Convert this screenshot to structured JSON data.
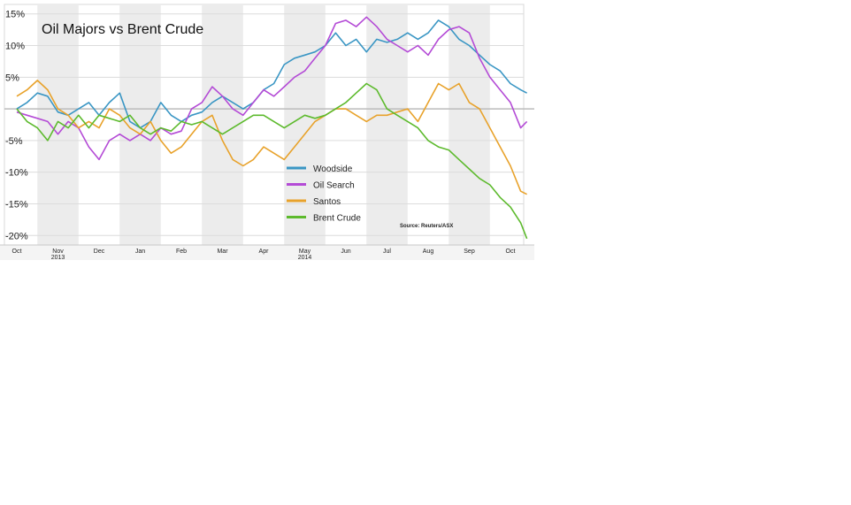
{
  "chart_data": {
    "type": "line",
    "title": "Oil Majors vs Brent Crude",
    "source": "Source: Reuters/ASX",
    "ylim": [
      -21.5,
      16.5
    ],
    "y_ticks": [
      15,
      10,
      5,
      -5,
      -10,
      -15,
      -20
    ],
    "y_tick_labels": [
      "15%",
      "10%",
      "5%",
      "-5%",
      "-10%",
      "-15%",
      "-20%"
    ],
    "zero_line": 0,
    "x_months": [
      "Oct",
      "Nov",
      "Dec",
      "Jan",
      "Feb",
      "Mar",
      "Apr",
      "May",
      "Jun",
      "Jul",
      "Aug",
      "Sep",
      "Oct"
    ],
    "x_years": [
      {
        "label": "2013",
        "month_index": 1
      },
      {
        "label": "2014",
        "month_index": 7
      }
    ],
    "shaded_months": [
      1,
      3,
      5,
      7,
      9,
      11
    ],
    "grid": true,
    "legend_position": "center",
    "series": [
      {
        "name": "Woodside",
        "color": "#3a96c4",
        "points": [
          [
            0,
            0
          ],
          [
            0.25,
            1
          ],
          [
            0.5,
            2.5
          ],
          [
            0.75,
            2
          ],
          [
            1,
            -0.5
          ],
          [
            1.25,
            -1
          ],
          [
            1.5,
            0
          ],
          [
            1.75,
            1
          ],
          [
            2,
            -1
          ],
          [
            2.25,
            1
          ],
          [
            2.5,
            2.5
          ],
          [
            2.75,
            -2
          ],
          [
            3,
            -3
          ],
          [
            3.25,
            -2
          ],
          [
            3.5,
            1
          ],
          [
            3.75,
            -1
          ],
          [
            4,
            -2
          ],
          [
            4.25,
            -1
          ],
          [
            4.5,
            -0.5
          ],
          [
            4.75,
            1
          ],
          [
            5,
            2
          ],
          [
            5.25,
            1
          ],
          [
            5.5,
            0
          ],
          [
            5.75,
            1
          ],
          [
            6,
            3
          ],
          [
            6.25,
            4
          ],
          [
            6.5,
            7
          ],
          [
            6.75,
            8
          ],
          [
            7,
            8.5
          ],
          [
            7.25,
            9
          ],
          [
            7.5,
            10
          ],
          [
            7.75,
            12
          ],
          [
            8,
            10
          ],
          [
            8.25,
            11
          ],
          [
            8.5,
            9
          ],
          [
            8.75,
            11
          ],
          [
            9,
            10.5
          ],
          [
            9.25,
            11
          ],
          [
            9.5,
            12
          ],
          [
            9.75,
            11
          ],
          [
            10,
            12
          ],
          [
            10.25,
            14
          ],
          [
            10.5,
            13
          ],
          [
            10.75,
            11
          ],
          [
            11,
            10
          ],
          [
            11.25,
            8.5
          ],
          [
            11.5,
            7
          ],
          [
            11.75,
            6
          ],
          [
            12,
            4
          ],
          [
            12.25,
            3
          ],
          [
            12.4,
            2.5
          ]
        ]
      },
      {
        "name": "Oil Search",
        "color": "#b44bd6",
        "points": [
          [
            0,
            -0.5
          ],
          [
            0.25,
            -1
          ],
          [
            0.5,
            -1.5
          ],
          [
            0.75,
            -2
          ],
          [
            1,
            -4
          ],
          [
            1.25,
            -2
          ],
          [
            1.5,
            -3
          ],
          [
            1.75,
            -6
          ],
          [
            2,
            -8
          ],
          [
            2.25,
            -5
          ],
          [
            2.5,
            -4
          ],
          [
            2.75,
            -5
          ],
          [
            3,
            -4
          ],
          [
            3.25,
            -5
          ],
          [
            3.5,
            -3
          ],
          [
            3.75,
            -4
          ],
          [
            4,
            -3.5
          ],
          [
            4.25,
            0
          ],
          [
            4.5,
            1
          ],
          [
            4.75,
            3.5
          ],
          [
            5,
            2
          ],
          [
            5.25,
            0
          ],
          [
            5.5,
            -1
          ],
          [
            5.75,
            1
          ],
          [
            6,
            3
          ],
          [
            6.25,
            2
          ],
          [
            6.5,
            3.5
          ],
          [
            6.75,
            5
          ],
          [
            7,
            6
          ],
          [
            7.25,
            8
          ],
          [
            7.5,
            10
          ],
          [
            7.75,
            13.5
          ],
          [
            8,
            14
          ],
          [
            8.25,
            13
          ],
          [
            8.5,
            14.5
          ],
          [
            8.75,
            13
          ],
          [
            9,
            11
          ],
          [
            9.25,
            10
          ],
          [
            9.5,
            9
          ],
          [
            9.75,
            10
          ],
          [
            10,
            8.5
          ],
          [
            10.25,
            11
          ],
          [
            10.5,
            12.5
          ],
          [
            10.75,
            13
          ],
          [
            11,
            12
          ],
          [
            11.25,
            8
          ],
          [
            11.5,
            5
          ],
          [
            11.75,
            3
          ],
          [
            12,
            1
          ],
          [
            12.25,
            -3
          ],
          [
            12.4,
            -2
          ]
        ]
      },
      {
        "name": "Santos",
        "color": "#e8a22b",
        "points": [
          [
            0,
            2
          ],
          [
            0.25,
            3
          ],
          [
            0.5,
            4.5
          ],
          [
            0.75,
            3
          ],
          [
            1,
            0
          ],
          [
            1.25,
            -1
          ],
          [
            1.5,
            -3
          ],
          [
            1.75,
            -2
          ],
          [
            2,
            -3
          ],
          [
            2.25,
            0
          ],
          [
            2.5,
            -1
          ],
          [
            2.75,
            -3
          ],
          [
            3,
            -4
          ],
          [
            3.25,
            -2
          ],
          [
            3.5,
            -5
          ],
          [
            3.75,
            -7
          ],
          [
            4,
            -6
          ],
          [
            4.25,
            -4
          ],
          [
            4.5,
            -2
          ],
          [
            4.75,
            -1
          ],
          [
            5,
            -5
          ],
          [
            5.25,
            -8
          ],
          [
            5.5,
            -9
          ],
          [
            5.75,
            -8
          ],
          [
            6,
            -6
          ],
          [
            6.25,
            -7
          ],
          [
            6.5,
            -8
          ],
          [
            6.75,
            -6
          ],
          [
            7,
            -4
          ],
          [
            7.25,
            -2
          ],
          [
            7.5,
            -1
          ],
          [
            7.75,
            0
          ],
          [
            8,
            0
          ],
          [
            8.25,
            -1
          ],
          [
            8.5,
            -2
          ],
          [
            8.75,
            -1
          ],
          [
            9,
            -1
          ],
          [
            9.25,
            -0.5
          ],
          [
            9.5,
            0
          ],
          [
            9.75,
            -2
          ],
          [
            10,
            1
          ],
          [
            10.25,
            4
          ],
          [
            10.5,
            3
          ],
          [
            10.75,
            4
          ],
          [
            11,
            1
          ],
          [
            11.25,
            0
          ],
          [
            11.5,
            -3
          ],
          [
            11.75,
            -6
          ],
          [
            12,
            -9
          ],
          [
            12.25,
            -13
          ],
          [
            12.4,
            -13.5
          ]
        ]
      },
      {
        "name": "Brent Crude",
        "color": "#5dba2d",
        "points": [
          [
            0,
            0
          ],
          [
            0.25,
            -2
          ],
          [
            0.5,
            -3
          ],
          [
            0.75,
            -5
          ],
          [
            1,
            -2
          ],
          [
            1.25,
            -3
          ],
          [
            1.5,
            -1
          ],
          [
            1.75,
            -3
          ],
          [
            2,
            -1
          ],
          [
            2.25,
            -1.5
          ],
          [
            2.5,
            -2
          ],
          [
            2.75,
            -1
          ],
          [
            3,
            -3
          ],
          [
            3.25,
            -4
          ],
          [
            3.5,
            -3
          ],
          [
            3.75,
            -3.5
          ],
          [
            4,
            -2
          ],
          [
            4.25,
            -2.5
          ],
          [
            4.5,
            -2
          ],
          [
            4.75,
            -3
          ],
          [
            5,
            -4
          ],
          [
            5.25,
            -3
          ],
          [
            5.5,
            -2
          ],
          [
            5.75,
            -1
          ],
          [
            6,
            -1
          ],
          [
            6.25,
            -2
          ],
          [
            6.5,
            -3
          ],
          [
            6.75,
            -2
          ],
          [
            7,
            -1
          ],
          [
            7.25,
            -1.5
          ],
          [
            7.5,
            -1
          ],
          [
            7.75,
            0
          ],
          [
            8,
            1
          ],
          [
            8.25,
            2.5
          ],
          [
            8.5,
            4
          ],
          [
            8.75,
            3
          ],
          [
            9,
            0
          ],
          [
            9.25,
            -1
          ],
          [
            9.5,
            -2
          ],
          [
            9.75,
            -3
          ],
          [
            10,
            -5
          ],
          [
            10.25,
            -6
          ],
          [
            10.5,
            -6.5
          ],
          [
            10.75,
            -8
          ],
          [
            11,
            -9.5
          ],
          [
            11.25,
            -11
          ],
          [
            11.5,
            -12
          ],
          [
            11.75,
            -14
          ],
          [
            12,
            -15.5
          ],
          [
            12.25,
            -18
          ],
          [
            12.4,
            -20.5
          ]
        ]
      }
    ]
  }
}
